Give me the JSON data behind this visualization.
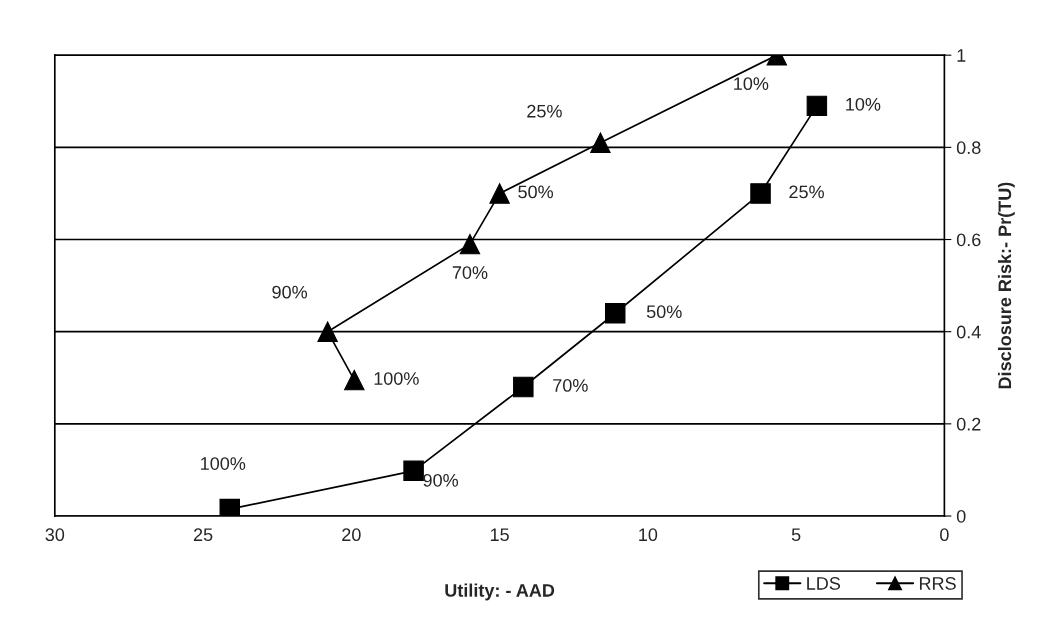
{
  "chart_data": {
    "type": "line",
    "xlabel": "Utility: - AAD",
    "ylabel": "Disclosure Risk:- Pr(TU)",
    "xlim": [
      30,
      0
    ],
    "xticks": [
      30,
      25,
      20,
      15,
      10,
      5,
      0
    ],
    "ylim": [
      0,
      1
    ],
    "yticks": [
      0,
      0.2,
      0.4,
      0.6,
      0.8,
      1
    ],
    "grid": "y",
    "legend": "bottom right",
    "series": [
      {
        "name": "LDS",
        "color": "#000000",
        "marker": "square",
        "x": [
          4.3,
          6.2,
          11.1,
          14.2,
          17.9,
          24.1
        ],
        "values": [
          0.89,
          0.7,
          0.44,
          0.28,
          0.098,
          0.015
        ]
      },
      {
        "name": "RRS",
        "color": "#000000",
        "marker": "triangle",
        "x": [
          5.65,
          11.6,
          15.0,
          16.0,
          20.8,
          19.9
        ],
        "values": [
          1.0,
          0.81,
          0.7,
          0.59,
          0.4,
          0.295
        ]
      }
    ],
    "annotations": [
      {
        "text": "10%",
        "x": 4.3,
        "y": 0.89
      },
      {
        "text": "25%",
        "x": 6.2,
        "y": 0.7
      },
      {
        "text": "50%",
        "x": 11.1,
        "y": 0.44
      },
      {
        "text": "70%",
        "x": 14.2,
        "y": 0.28
      },
      {
        "text": "90%",
        "x": 17.9,
        "y": 0.098
      },
      {
        "text": "100%",
        "x": 24.1,
        "y": 0.015
      },
      {
        "text": "10%",
        "x": 5.65,
        "y": 1.0
      },
      {
        "text": "25%",
        "x": 11.6,
        "y": 0.81
      },
      {
        "text": "50%",
        "x": 15.0,
        "y": 0.7
      },
      {
        "text": "70%",
        "x": 16.0,
        "y": 0.59
      },
      {
        "text": "90%",
        "x": 20.8,
        "y": 0.4
      },
      {
        "text": "100%",
        "x": 19.9,
        "y": 0.295
      }
    ]
  }
}
